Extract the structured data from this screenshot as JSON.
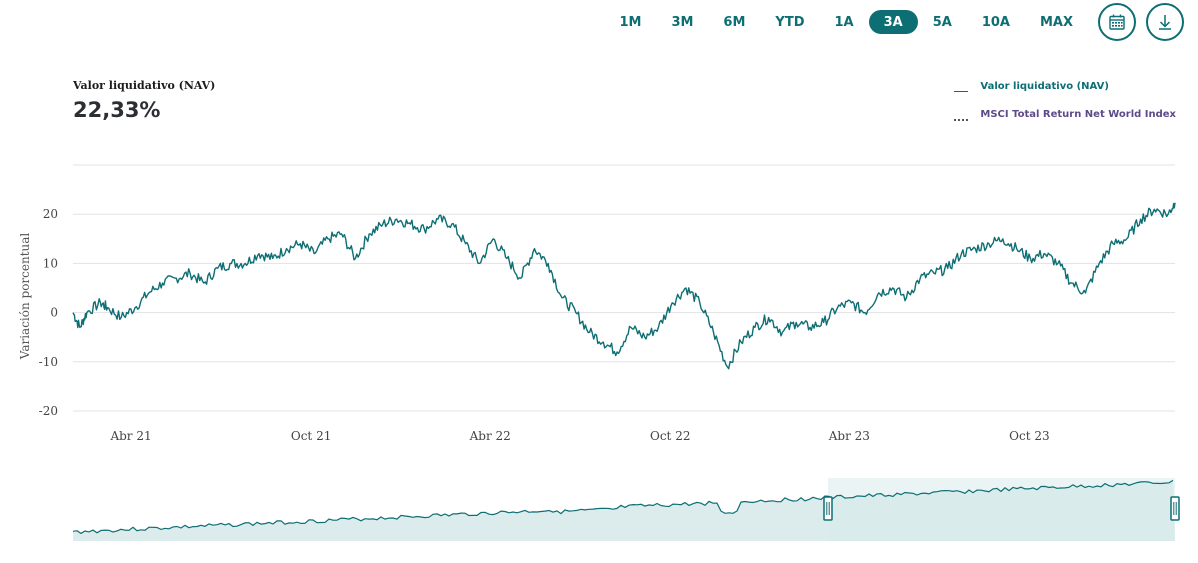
{
  "range_selector": {
    "buttons": [
      {
        "label": "1M",
        "active": false
      },
      {
        "label": "3M",
        "active": false
      },
      {
        "label": "6M",
        "active": false
      },
      {
        "label": "YTD",
        "active": false
      },
      {
        "label": "1A",
        "active": false
      },
      {
        "label": "3A",
        "active": true
      },
      {
        "label": "5A",
        "active": false
      },
      {
        "label": "10A",
        "active": false
      },
      {
        "label": "MAX",
        "active": false
      }
    ],
    "calendar_icon": "calendar-icon",
    "download_icon": "download-icon"
  },
  "summary": {
    "label": "Valor liquidativo (NAV)",
    "value": "22,33%"
  },
  "legend": {
    "nav": "Valor liquidativo (NAV)",
    "msci": "MSCI Total Return Net World Index"
  },
  "colors": {
    "accent": "#0d6e74",
    "navigator_fill": "#d6e9e9",
    "navigator_selected_fill": "#eaf4f4",
    "msci_legend": "#5e4a8a"
  },
  "chart_data": {
    "type": "line",
    "ylabel": "Variación porcentual",
    "xlabel": "",
    "ylim": [
      -20,
      30
    ],
    "yticks": [
      20,
      10,
      0,
      -10,
      -20
    ],
    "grid": true,
    "legend_position": "top-right",
    "x_range": [
      "2021-02-01",
      "2024-02-26"
    ],
    "xticks": [
      {
        "label": "Abr 21",
        "date": "2021-04-01"
      },
      {
        "label": "Oct 21",
        "date": "2021-10-01"
      },
      {
        "label": "Abr 22",
        "date": "2022-04-01"
      },
      {
        "label": "Oct 22",
        "date": "2022-10-01"
      },
      {
        "label": "Abr 23",
        "date": "2023-04-01"
      },
      {
        "label": "Oct 23",
        "date": "2023-10-01"
      }
    ],
    "series": [
      {
        "name": "Valor liquidativo (NAV)",
        "x": [
          "2021-02-01",
          "2021-02-08",
          "2021-02-15",
          "2021-03-01",
          "2021-03-08",
          "2021-03-22",
          "2021-04-05",
          "2021-04-19",
          "2021-05-03",
          "2021-05-17",
          "2021-05-31",
          "2021-06-14",
          "2021-06-28",
          "2021-07-12",
          "2021-07-26",
          "2021-08-09",
          "2021-08-23",
          "2021-09-06",
          "2021-09-20",
          "2021-10-04",
          "2021-10-18",
          "2021-11-01",
          "2021-11-15",
          "2021-11-29",
          "2021-12-13",
          "2021-12-27",
          "2022-01-10",
          "2022-01-24",
          "2022-02-07",
          "2022-02-21",
          "2022-03-07",
          "2022-03-21",
          "2022-04-04",
          "2022-04-18",
          "2022-05-02",
          "2022-05-16",
          "2022-05-30",
          "2022-06-13",
          "2022-06-27",
          "2022-07-11",
          "2022-07-25",
          "2022-08-08",
          "2022-08-22",
          "2022-09-05",
          "2022-09-19",
          "2022-10-03",
          "2022-10-17",
          "2022-10-31",
          "2022-11-14",
          "2022-11-28",
          "2022-12-12",
          "2022-12-26",
          "2023-01-09",
          "2023-01-23",
          "2023-02-06",
          "2023-02-20",
          "2023-03-06",
          "2023-03-20",
          "2023-04-03",
          "2023-04-17",
          "2023-05-01",
          "2023-05-15",
          "2023-05-29",
          "2023-06-12",
          "2023-06-26",
          "2023-07-10",
          "2023-07-24",
          "2023-08-07",
          "2023-08-21",
          "2023-09-04",
          "2023-09-18",
          "2023-10-02",
          "2023-10-16",
          "2023-10-30",
          "2023-11-13",
          "2023-11-27",
          "2023-12-11",
          "2023-12-25",
          "2024-01-08",
          "2024-01-22",
          "2024-02-05",
          "2024-02-19",
          "2024-02-26"
        ],
        "values": [
          0,
          -3,
          0,
          2,
          1,
          -1,
          1,
          4,
          6,
          7,
          8,
          6,
          9,
          10,
          10,
          12,
          11,
          13,
          14,
          12,
          15,
          16,
          11,
          16,
          18,
          19,
          18,
          17,
          19,
          18,
          14,
          10,
          15,
          11,
          7,
          13,
          10,
          3,
          0,
          -4,
          -6,
          -8,
          -3,
          -5,
          -3,
          2,
          5,
          2,
          -4,
          -11,
          -6,
          -3,
          -1,
          -4,
          -2,
          -3,
          -2,
          1,
          2,
          0,
          4,
          5,
          3,
          7,
          8,
          9,
          12,
          13,
          14,
          15,
          13,
          11,
          12,
          10,
          6,
          4,
          10,
          14,
          15,
          19,
          21,
          20,
          22.33
        ]
      }
    ]
  },
  "navigator": {
    "selected_from": "2021-02-01",
    "selected_to": "2024-02-26"
  }
}
